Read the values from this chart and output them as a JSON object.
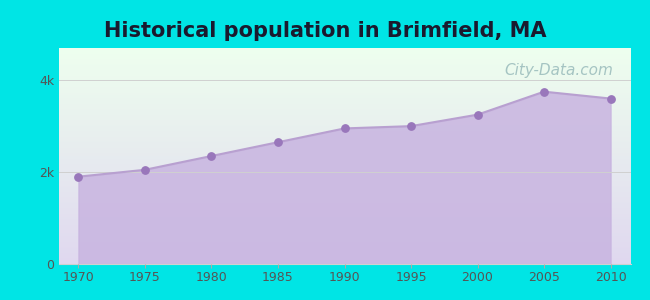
{
  "title": "Historical population in Brimfield, MA",
  "title_fontsize": 15,
  "title_fontweight": "bold",
  "years": [
    1970,
    1975,
    1980,
    1985,
    1990,
    1995,
    2000,
    2005,
    2010
  ],
  "population": [
    1900,
    2050,
    2350,
    2650,
    2950,
    3000,
    3250,
    3750,
    3600
  ],
  "line_color": "#b8a0d0",
  "fill_color": "#c8b4e0",
  "fill_alpha": 0.85,
  "marker_color": "#9977bb",
  "marker_size": 28,
  "bg_outer": "#00e5e5",
  "bg_plot_top_color": "#eeffee",
  "bg_plot_bottom_color": "#e0d8f0",
  "ytick_labels": [
    "0",
    "2k",
    "4k"
  ],
  "ytick_values": [
    0,
    2000,
    4000
  ],
  "ylim": [
    0,
    4700
  ],
  "xlim": [
    1968.5,
    2011.5
  ],
  "grid_color": "#d0d0d0",
  "watermark": "City-Data.com",
  "watermark_color": "#99bbbb",
  "watermark_fontsize": 11,
  "axis_label_color": "#555555",
  "tick_fontsize": 9,
  "title_color": "#1a1a2e"
}
